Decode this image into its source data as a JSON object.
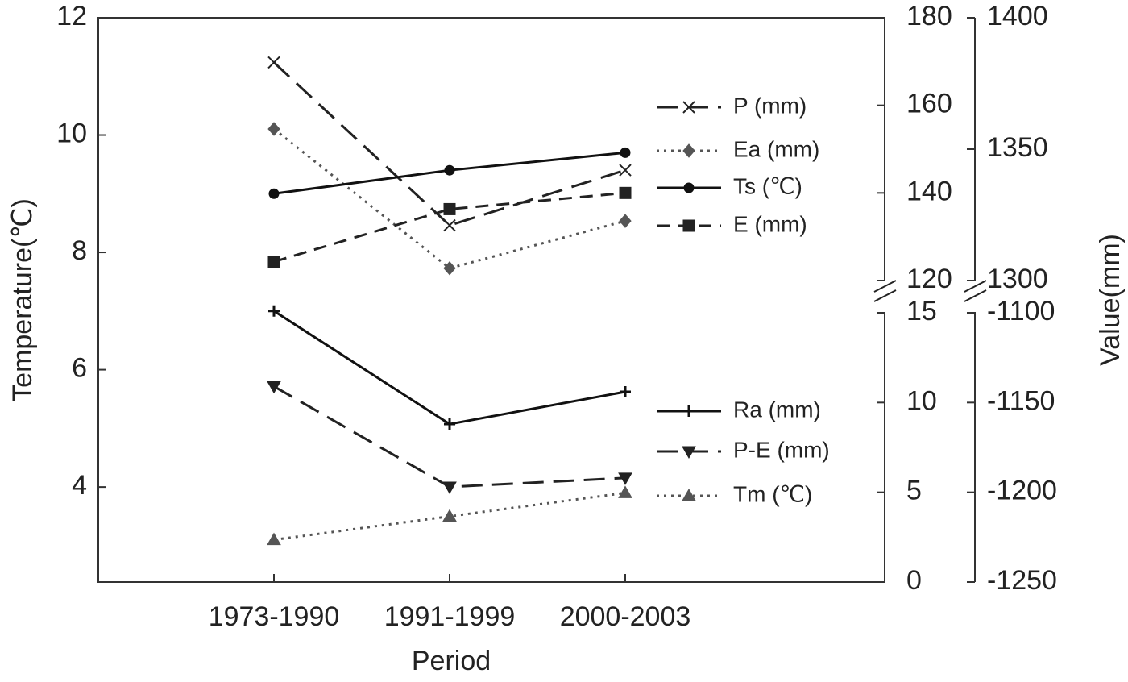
{
  "chart_data": {
    "type": "line",
    "x_label": "Period",
    "y_label": "Temperature(℃)",
    "y2_label": "Value(mm)",
    "categories": [
      "1973-1990",
      "1991-1999",
      "2000-2003"
    ],
    "ylim": [
      2.38,
      12
    ],
    "yticks": [
      4,
      6,
      8,
      10,
      12
    ],
    "y2": {
      "upper": {
        "lim": [
          120,
          180
        ],
        "ticks": [
          120,
          140,
          160,
          180
        ]
      },
      "lower": {
        "lim": [
          0,
          15
        ],
        "ticks": [
          0,
          5,
          10,
          15
        ]
      }
    },
    "y3": {
      "upper": {
        "lim": [
          1300,
          1400
        ],
        "ticks": [
          1300,
          1350,
          1400
        ]
      },
      "lower": {
        "lim": [
          -1250,
          -1100
        ],
        "ticks": [
          -1250,
          -1200,
          -1150,
          -1100
        ]
      }
    },
    "series": [
      {
        "name": "P (mm)",
        "axis": "y3",
        "segment": "upper",
        "marker": "x",
        "dash": "long",
        "color": "#222222",
        "values": [
          1383,
          1321,
          1342
        ]
      },
      {
        "name": "Ea (mm)",
        "axis": "y2",
        "segment": "upper",
        "marker": "diamond",
        "dash": "dot",
        "color": "#555555",
        "values": [
          154.6,
          122.8,
          133.6
        ]
      },
      {
        "name": "Ts (℃)",
        "axis": "y",
        "marker": "circle",
        "dash": "solid",
        "color": "#111111",
        "values": [
          9.0,
          9.4,
          9.7
        ]
      },
      {
        "name": "E (mm)",
        "axis": "y2",
        "segment": "upper",
        "marker": "square",
        "dash": "dash",
        "color": "#222222",
        "values": [
          124.3,
          136.3,
          140.0
        ]
      },
      {
        "name": "Ra (mm)",
        "axis": "y2",
        "segment": "lower",
        "marker": "star",
        "dash": "solid",
        "color": "#111111",
        "values": [
          15.1,
          8.8,
          10.6
        ]
      },
      {
        "name": "P-E (mm)",
        "axis": "y3",
        "segment": "lower",
        "marker": "down",
        "dash": "long",
        "color": "#222222",
        "values": [
          -1141,
          -1197,
          -1192
        ]
      },
      {
        "name": "Tm (℃)",
        "axis": "y",
        "marker": "up",
        "dash": "dot",
        "color": "#555555",
        "values": [
          3.1,
          3.5,
          3.9
        ]
      }
    ]
  }
}
